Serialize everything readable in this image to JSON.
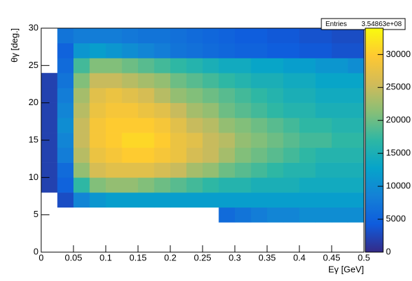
{
  "chart_data": {
    "type": "heatmap",
    "x_label": "Eγ [GeV]",
    "y_label": "θγ [deg.]",
    "stats": {
      "name": "Entries",
      "entries": {
        "value": 354863000,
        "label": "3.54863e+08"
      }
    },
    "xlim": [
      0,
      0.5
    ],
    "ylim": [
      0,
      30
    ],
    "zlim": [
      0,
      34000
    ],
    "xticks": [
      0,
      0.05,
      0.1,
      0.15,
      0.2,
      0.25,
      0.3,
      0.35,
      0.4,
      0.45,
      0.5
    ],
    "yticks": [
      0,
      5,
      10,
      15,
      20,
      25,
      30
    ],
    "zticks": [
      0,
      5000,
      10000,
      15000,
      20000,
      25000,
      30000
    ],
    "colormap": [
      "#352a87",
      "#0f5cdd",
      "#1481d6",
      "#06a4ca",
      "#2eb7a4",
      "#87bf77",
      "#d1bb59",
      "#fec832",
      "#f9fb0e"
    ],
    "xbins": [
      0,
      0.025,
      0.05,
      0.075,
      0.1,
      0.125,
      0.15,
      0.175,
      0.2,
      0.225,
      0.25,
      0.275,
      0.3,
      0.325,
      0.35,
      0.375,
      0.4,
      0.425,
      0.45,
      0.475,
      0.5
    ],
    "ybins": [
      0,
      2,
      4,
      6,
      8,
      10,
      12,
      14,
      16,
      18,
      20,
      22,
      24,
      26,
      28,
      30
    ],
    "z": [
      [
        null,
        null,
        null,
        null,
        null,
        null,
        null,
        null,
        null,
        null,
        null,
        null,
        null,
        null,
        null,
        null,
        null,
        null,
        null,
        null
      ],
      [
        null,
        null,
        null,
        null,
        null,
        null,
        null,
        null,
        null,
        null,
        null,
        null,
        null,
        null,
        null,
        null,
        null,
        null,
        null,
        null
      ],
      [
        null,
        null,
        null,
        null,
        null,
        null,
        null,
        null,
        null,
        null,
        null,
        6000,
        7000,
        8000,
        9000,
        9000,
        10000,
        10000,
        10000,
        10000
      ],
      [
        null,
        3000,
        9000,
        11000,
        12000,
        12000,
        12000,
        12000,
        12000,
        12000,
        12000,
        12000,
        12000,
        12000,
        12000,
        12000,
        12000,
        12000,
        12000,
        12000
      ],
      [
        2000,
        5000,
        17000,
        21000,
        22000,
        22000,
        21000,
        20000,
        19000,
        18000,
        17000,
        16000,
        16000,
        15000,
        15000,
        15000,
        14000,
        14000,
        14000,
        14000
      ],
      [
        2000,
        6000,
        22000,
        26000,
        27000,
        27000,
        27000,
        26000,
        25000,
        23000,
        22000,
        20000,
        19000,
        18000,
        17000,
        16000,
        16000,
        15000,
        15000,
        15000
      ],
      [
        2000,
        8000,
        24000,
        28000,
        29000,
        30000,
        30000,
        29000,
        28000,
        26000,
        25000,
        23000,
        21000,
        20000,
        19000,
        18000,
        17000,
        16000,
        16000,
        16000
      ],
      [
        2000,
        9000,
        25000,
        29000,
        30000,
        31000,
        31000,
        30000,
        28000,
        27000,
        25000,
        24000,
        22000,
        21000,
        20000,
        19000,
        18000,
        18000,
        17000,
        17000
      ],
      [
        2000,
        10000,
        25000,
        29000,
        30000,
        30000,
        30000,
        29000,
        27000,
        25000,
        24000,
        22000,
        21000,
        20000,
        19000,
        18000,
        17000,
        17000,
        16000,
        16000
      ],
      [
        2000,
        9000,
        24000,
        28000,
        29000,
        29000,
        28000,
        27000,
        25000,
        23000,
        22000,
        20000,
        19000,
        18000,
        17000,
        16000,
        16000,
        15000,
        15000,
        15000
      ],
      [
        2000,
        8000,
        23000,
        27000,
        28000,
        27000,
        26000,
        24000,
        22000,
        21000,
        20000,
        19000,
        18000,
        17000,
        16000,
        15000,
        15000,
        14000,
        14000,
        14000
      ],
      [
        2000,
        7000,
        21000,
        25000,
        25000,
        24000,
        23000,
        22000,
        20000,
        19000,
        18000,
        17000,
        16000,
        15000,
        15000,
        14000,
        14000,
        13000,
        13000,
        13000
      ],
      [
        null,
        6000,
        18000,
        21000,
        21000,
        20000,
        19000,
        18000,
        17000,
        16000,
        15000,
        14000,
        14000,
        13000,
        13000,
        12000,
        12000,
        11000,
        11000,
        10000
      ],
      [
        null,
        5000,
        11000,
        12000,
        11000,
        10000,
        9000,
        8000,
        7000,
        6500,
        6000,
        5500,
        5000,
        5000,
        4500,
        4500,
        4000,
        4000,
        3500,
        3500
      ],
      [
        null,
        7000,
        8000,
        8000,
        8000,
        7500,
        7000,
        7000,
        6500,
        6000,
        5500,
        5000,
        4500,
        4500,
        4000,
        4000,
        3500,
        3500,
        3000,
        3000
      ]
    ]
  }
}
